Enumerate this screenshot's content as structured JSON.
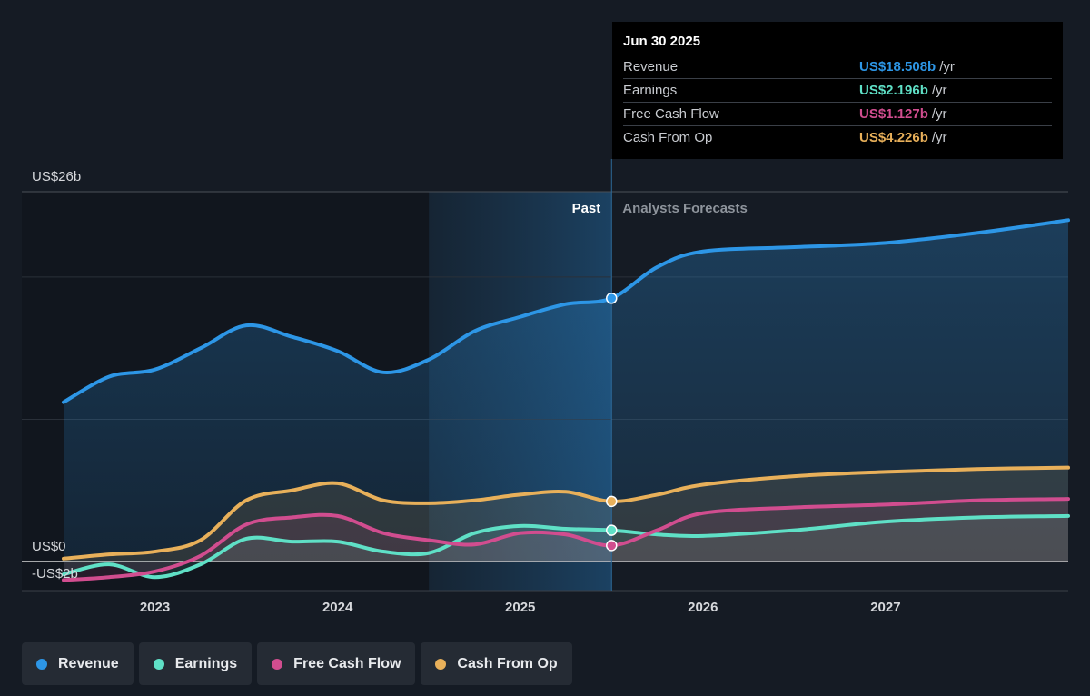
{
  "chart_data": {
    "type": "line",
    "x_unit": "year",
    "xlim": [
      2022.5,
      2028.0
    ],
    "ylim": [
      -2,
      26
    ],
    "y_tick_labels": [
      {
        "value": 26,
        "label": "US$26b"
      },
      {
        "value": 0,
        "label": "US$0"
      },
      {
        "value": -2,
        "label": "-US$2b"
      }
    ],
    "x_tick_labels": [
      {
        "value": 2023,
        "label": "2023"
      },
      {
        "value": 2024,
        "label": "2024"
      },
      {
        "value": 2025,
        "label": "2025"
      },
      {
        "value": 2026,
        "label": "2026"
      },
      {
        "value": 2027,
        "label": "2027"
      }
    ],
    "gridlines_at": [
      26,
      20,
      10
    ],
    "past_forecast_divider": 2025.5,
    "highlight_start": 2024.5,
    "region_labels": {
      "past": "Past",
      "forecast": "Analysts Forecasts"
    },
    "legend_placement": "bottom-left",
    "series": [
      {
        "name": "Revenue",
        "color": "#2d96e6",
        "fill": true,
        "points": [
          [
            2022.5,
            11.2
          ],
          [
            2022.75,
            13.0
          ],
          [
            2023.0,
            13.5
          ],
          [
            2023.25,
            15.0
          ],
          [
            2023.5,
            16.6
          ],
          [
            2023.75,
            15.8
          ],
          [
            2024.0,
            14.8
          ],
          [
            2024.25,
            13.3
          ],
          [
            2024.5,
            14.2
          ],
          [
            2024.75,
            16.2
          ],
          [
            2025.0,
            17.2
          ],
          [
            2025.25,
            18.1
          ],
          [
            2025.5,
            18.508
          ],
          [
            2025.75,
            20.7
          ],
          [
            2026.0,
            21.8
          ],
          [
            2026.5,
            22.1
          ],
          [
            2027.0,
            22.4
          ],
          [
            2027.5,
            23.1
          ],
          [
            2028.0,
            24.0
          ]
        ]
      },
      {
        "name": "Earnings",
        "color": "#5fe0c6",
        "fill": false,
        "points": [
          [
            2022.5,
            -0.9
          ],
          [
            2022.75,
            -0.2
          ],
          [
            2023.0,
            -1.1
          ],
          [
            2023.25,
            -0.2
          ],
          [
            2023.5,
            1.6
          ],
          [
            2023.75,
            1.4
          ],
          [
            2024.0,
            1.4
          ],
          [
            2024.25,
            0.7
          ],
          [
            2024.5,
            0.6
          ],
          [
            2024.75,
            2.0
          ],
          [
            2025.0,
            2.5
          ],
          [
            2025.25,
            2.3
          ],
          [
            2025.5,
            2.196
          ],
          [
            2025.75,
            1.9
          ],
          [
            2026.0,
            1.8
          ],
          [
            2026.5,
            2.2
          ],
          [
            2027.0,
            2.8
          ],
          [
            2027.5,
            3.1
          ],
          [
            2028.0,
            3.2
          ]
        ]
      },
      {
        "name": "Free Cash Flow",
        "color": "#d14d8f",
        "fill": false,
        "points": [
          [
            2022.5,
            -1.3
          ],
          [
            2022.75,
            -1.1
          ],
          [
            2023.0,
            -0.7
          ],
          [
            2023.25,
            0.4
          ],
          [
            2023.5,
            2.6
          ],
          [
            2023.75,
            3.1
          ],
          [
            2024.0,
            3.2
          ],
          [
            2024.25,
            2.0
          ],
          [
            2024.5,
            1.5
          ],
          [
            2024.75,
            1.2
          ],
          [
            2025.0,
            2.0
          ],
          [
            2025.25,
            1.9
          ],
          [
            2025.5,
            1.127
          ],
          [
            2025.75,
            2.2
          ],
          [
            2026.0,
            3.4
          ],
          [
            2026.5,
            3.8
          ],
          [
            2027.0,
            4.0
          ],
          [
            2027.5,
            4.3
          ],
          [
            2028.0,
            4.4
          ]
        ]
      },
      {
        "name": "Cash From Op",
        "color": "#e8b05a",
        "fill": false,
        "points": [
          [
            2022.5,
            0.2
          ],
          [
            2022.75,
            0.5
          ],
          [
            2023.0,
            0.7
          ],
          [
            2023.25,
            1.5
          ],
          [
            2023.5,
            4.3
          ],
          [
            2023.75,
            5.0
          ],
          [
            2024.0,
            5.5
          ],
          [
            2024.25,
            4.3
          ],
          [
            2024.5,
            4.1
          ],
          [
            2024.75,
            4.3
          ],
          [
            2025.0,
            4.7
          ],
          [
            2025.25,
            4.9
          ],
          [
            2025.5,
            4.226
          ],
          [
            2025.75,
            4.7
          ],
          [
            2026.0,
            5.4
          ],
          [
            2026.5,
            6.0
          ],
          [
            2027.0,
            6.3
          ],
          [
            2027.5,
            6.5
          ],
          [
            2028.0,
            6.6
          ]
        ]
      }
    ]
  },
  "tooltip": {
    "date": "Jun 30 2025",
    "rows": [
      {
        "label": "Revenue",
        "value": "US$18.508b",
        "unit": "/yr",
        "color": "#2d96e6"
      },
      {
        "label": "Earnings",
        "value": "US$2.196b",
        "unit": "/yr",
        "color": "#5fe0c6"
      },
      {
        "label": "Free Cash Flow",
        "value": "US$1.127b",
        "unit": "/yr",
        "color": "#d14d8f"
      },
      {
        "label": "Cash From Op",
        "value": "US$4.226b",
        "unit": "/yr",
        "color": "#e8b05a"
      }
    ]
  },
  "legend": [
    {
      "label": "Revenue",
      "color": "#2d96e6"
    },
    {
      "label": "Earnings",
      "color": "#5fe0c6"
    },
    {
      "label": "Free Cash Flow",
      "color": "#d14d8f"
    },
    {
      "label": "Cash From Op",
      "color": "#e8b05a"
    }
  ]
}
